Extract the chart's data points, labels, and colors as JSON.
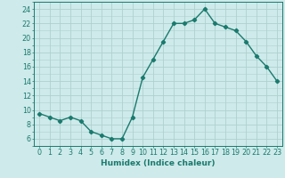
{
  "x": [
    0,
    1,
    2,
    3,
    4,
    5,
    6,
    7,
    8,
    9,
    10,
    11,
    12,
    13,
    14,
    15,
    16,
    17,
    18,
    19,
    20,
    21,
    22,
    23
  ],
  "y": [
    9.5,
    9.0,
    8.5,
    9.0,
    8.5,
    7.0,
    6.5,
    6.0,
    6.0,
    9.0,
    14.5,
    17.0,
    19.5,
    22.0,
    22.0,
    22.5,
    24.0,
    22.0,
    21.5,
    21.0,
    19.5,
    17.5,
    16.0,
    14.0
  ],
  "line_color": "#1a7a6e",
  "marker": "D",
  "markersize": 2.2,
  "linewidth": 1.0,
  "bg_color": "#ceeaea",
  "grid_color": "#b0d0d0",
  "xlabel": "Humidex (Indice chaleur)",
  "ylim": [
    5,
    25
  ],
  "xlim": [
    -0.5,
    23.5
  ],
  "yticks": [
    6,
    8,
    10,
    12,
    14,
    16,
    18,
    20,
    22,
    24
  ],
  "xticks": [
    0,
    1,
    2,
    3,
    4,
    5,
    6,
    7,
    8,
    9,
    10,
    11,
    12,
    13,
    14,
    15,
    16,
    17,
    18,
    19,
    20,
    21,
    22,
    23
  ],
  "tick_color": "#1a7a6e",
  "label_fontsize": 6.5,
  "tick_fontsize": 5.8
}
